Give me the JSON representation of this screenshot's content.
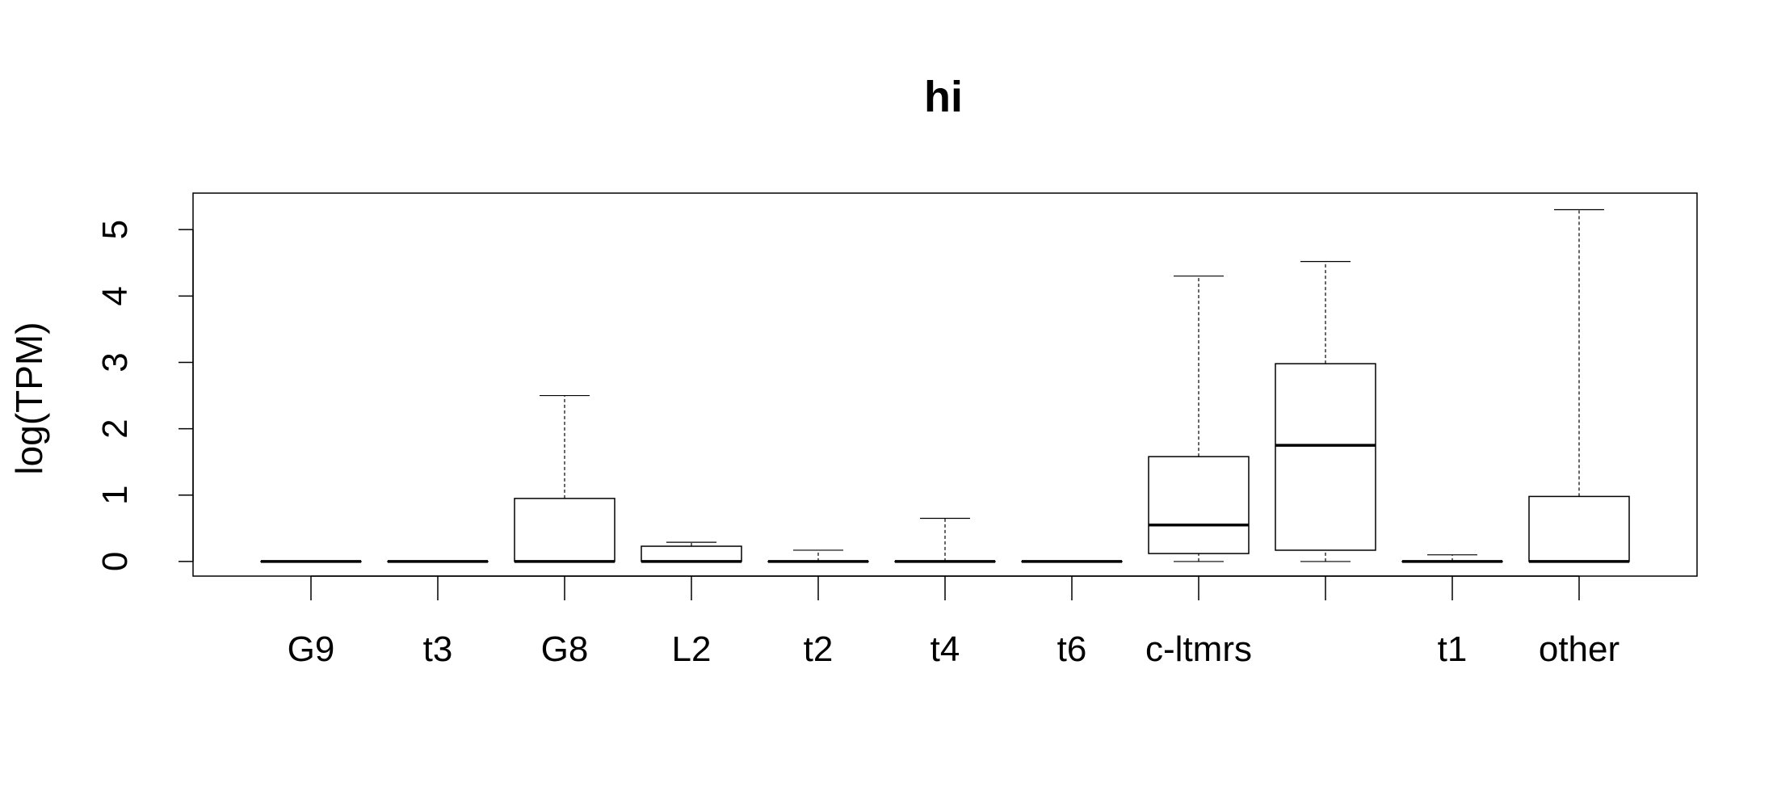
{
  "chart_data": {
    "type": "box",
    "title": "hi",
    "xlabel": "",
    "ylabel": "log(TPM)",
    "ylim": [
      -0.22,
      5.55
    ],
    "yticks": [
      0,
      1,
      2,
      3,
      4,
      5
    ],
    "grid": false,
    "categories": [
      "G9",
      "t3",
      "G8",
      "L2",
      "t2",
      "t4",
      "t6",
      "c-ltmrs",
      "",
      "t1",
      "other"
    ],
    "boxes": [
      {
        "min": 0,
        "q1": 0,
        "median": 0,
        "q3": 0,
        "max": 0
      },
      {
        "min": 0,
        "q1": 0,
        "median": 0,
        "q3": 0,
        "max": 0
      },
      {
        "min": 0,
        "q1": 0,
        "median": 0,
        "q3": 0.95,
        "max": 2.5
      },
      {
        "min": 0,
        "q1": 0,
        "median": 0,
        "q3": 0.23,
        "max": 0.29
      },
      {
        "min": 0,
        "q1": 0,
        "median": 0,
        "q3": 0,
        "max": 0.17
      },
      {
        "min": 0,
        "q1": 0,
        "median": 0,
        "q3": 0,
        "max": 0.65
      },
      {
        "min": 0,
        "q1": 0,
        "median": 0,
        "q3": 0,
        "max": 0
      },
      {
        "min": 0,
        "q1": 0.12,
        "median": 0.55,
        "q3": 1.58,
        "max": 4.3
      },
      {
        "min": 0,
        "q1": 0.17,
        "median": 1.75,
        "q3": 2.98,
        "max": 4.52
      },
      {
        "min": 0,
        "q1": 0,
        "median": 0,
        "q3": 0,
        "max": 0.1
      },
      {
        "min": 0,
        "q1": 0,
        "median": 0,
        "q3": 0.98,
        "max": 5.3
      }
    ]
  }
}
